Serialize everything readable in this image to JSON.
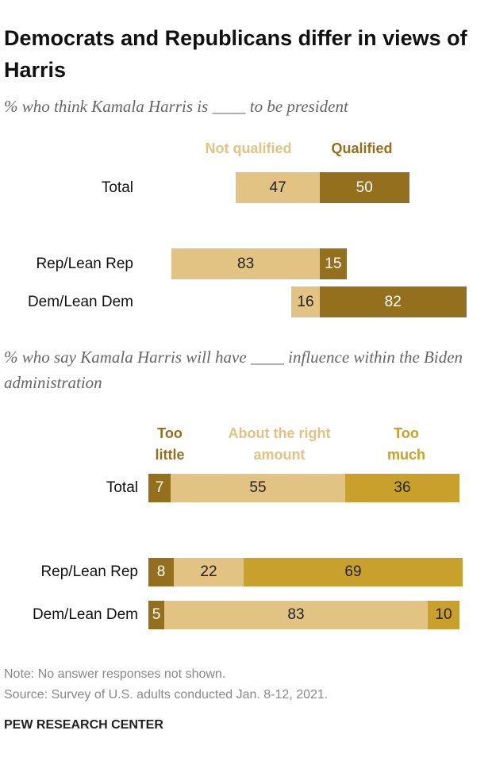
{
  "title": "Democrats and Republicans differ in views of Harris",
  "chart_data": [
    {
      "type": "diverging",
      "subtitle": "% who think Kamala Harris is ____ to be president",
      "categories": [
        "Total",
        "Rep/Lean Rep",
        "Dem/Lean Dem"
      ],
      "series": [
        {
          "name": "Not qualified",
          "color": "#e2c383",
          "values": [
            47,
            83,
            16
          ]
        },
        {
          "name": "Qualified",
          "color": "#94701e",
          "values": [
            50,
            15,
            82
          ]
        }
      ]
    },
    {
      "type": "stacked",
      "subtitle": "% who say Kamala Harris will have ____ influence within the Biden administration",
      "categories": [
        "Total",
        "Rep/Lean Rep",
        "Dem/Lean Dem"
      ],
      "series": [
        {
          "name": "Too little",
          "color": "#94701e",
          "values": [
            7,
            8,
            5
          ]
        },
        {
          "name": "About the right amount",
          "color": "#e2c383",
          "values": [
            55,
            22,
            83
          ]
        },
        {
          "name": "Too much",
          "color": "#c9a02c",
          "values": [
            36,
            69,
            10
          ]
        }
      ]
    }
  ],
  "note": "Note: No answer responses not shown.",
  "source": "Source: Survey of U.S. adults conducted Jan. 8-12, 2021.",
  "brand": "PEW RESEARCH CENTER"
}
